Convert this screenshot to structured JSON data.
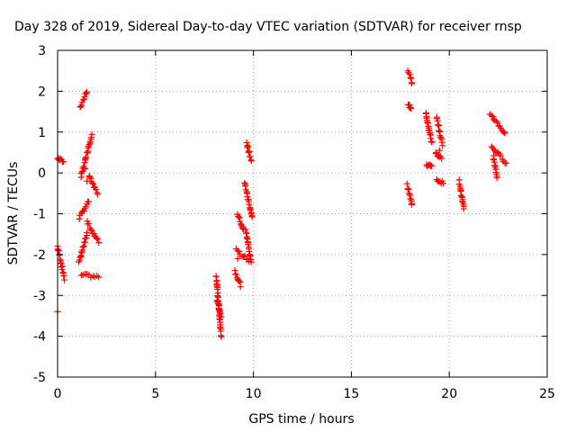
{
  "chart_data": {
    "type": "scatter",
    "title": "Day 328 of 2019, Sidereal Day-to-day VTEC variation (SDTVAR) for receiver rnsp",
    "xlabel": "GPS time / hours",
    "ylabel": "SDTVAR / TECUs",
    "xlim": [
      0,
      25
    ],
    "ylim": [
      -5,
      3
    ],
    "xticks": [
      0,
      5,
      10,
      15,
      20,
      25
    ],
    "yticks": [
      -5,
      -4,
      -3,
      -2,
      -1,
      0,
      1,
      2,
      3
    ],
    "grid": true,
    "marker": "+",
    "color": "#ff0000",
    "series": [
      {
        "name": "SDTVAR",
        "segments": [
          {
            "x": [
              0.0,
              0.35
            ],
            "y": [
              -1.8,
              -2.6
            ]
          },
          {
            "x": [
              0.0,
              0.3
            ],
            "y": [
              0.35,
              0.28
            ]
          },
          {
            "x": [
              1.15,
              1.5
            ],
            "y": [
              1.6,
              2.0
            ]
          },
          {
            "x": [
              1.1,
              1.6
            ],
            "y": [
              -1.1,
              -0.7
            ]
          },
          {
            "x": [
              1.2,
              1.75
            ],
            "y": [
              -0.1,
              0.95
            ]
          },
          {
            "x": [
              1.1,
              1.5
            ],
            "y": [
              -2.2,
              -1.5
            ]
          },
          {
            "x": [
              1.2,
              2.1
            ],
            "y": [
              -2.5,
              -2.55
            ]
          },
          {
            "x": [
              1.5,
              2.1
            ],
            "y": [
              -1.2,
              -1.7
            ]
          },
          {
            "x": [
              1.6,
              2.05
            ],
            "y": [
              -0.05,
              -0.5
            ]
          },
          {
            "x": [
              8.1,
              8.35
            ],
            "y": [
              -2.5,
              -4.0
            ]
          },
          {
            "x": [
              8.15,
              8.35
            ],
            "y": [
              -3.1,
              -3.5
            ]
          },
          {
            "x": [
              9.05,
              9.35
            ],
            "y": [
              -2.4,
              -2.75
            ]
          },
          {
            "x": [
              9.1,
              9.8
            ],
            "y": [
              -1.9,
              -2.15
            ]
          },
          {
            "x": [
              9.2,
              9.5
            ],
            "y": [
              -1.0,
              -1.4
            ]
          },
          {
            "x": [
              9.55,
              9.95
            ],
            "y": [
              -0.25,
              -1.1
            ]
          },
          {
            "x": [
              9.6,
              9.9
            ],
            "y": [
              -1.4,
              -2.2
            ]
          },
          {
            "x": [
              9.65,
              9.9
            ],
            "y": [
              0.75,
              0.3
            ]
          },
          {
            "x": [
              17.9,
              18.1
            ],
            "y": [
              2.5,
              2.2
            ]
          },
          {
            "x": [
              17.9,
              18.05
            ],
            "y": [
              1.65,
              1.6
            ]
          },
          {
            "x": [
              17.85,
              18.1
            ],
            "y": [
              -0.3,
              -0.8
            ]
          },
          {
            "x": [
              18.8,
              19.1
            ],
            "y": [
              1.5,
              0.75
            ]
          },
          {
            "x": [
              18.85,
              19.1
            ],
            "y": [
              0.2,
              0.15
            ]
          },
          {
            "x": [
              19.35,
              19.65
            ],
            "y": [
              1.35,
              0.7
            ]
          },
          {
            "x": [
              19.3,
              19.6
            ],
            "y": [
              0.5,
              0.35
            ]
          },
          {
            "x": [
              19.35,
              19.7
            ],
            "y": [
              -0.15,
              -0.25
            ]
          },
          {
            "x": [
              20.5,
              20.75
            ],
            "y": [
              -0.2,
              -0.9
            ]
          },
          {
            "x": [
              22.1,
              22.85
            ],
            "y": [
              1.45,
              0.95
            ]
          },
          {
            "x": [
              22.15,
              22.9
            ],
            "y": [
              0.65,
              0.25
            ]
          },
          {
            "x": [
              22.25,
              22.45
            ],
            "y": [
              0.4,
              -0.1
            ]
          }
        ],
        "outliers": [
          {
            "x": 0.0,
            "y": -3.4
          },
          {
            "x": 1.5,
            "y": -0.2
          },
          {
            "x": 1.4,
            "y": 0.1
          },
          {
            "x": 9.2,
            "y": -2.1
          },
          {
            "x": 19.5,
            "y": 0.55
          }
        ]
      }
    ]
  }
}
